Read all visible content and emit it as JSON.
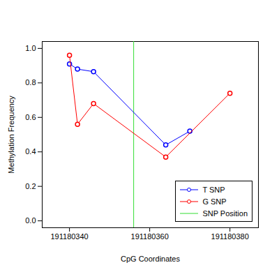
{
  "chart_data": {
    "type": "line",
    "x_label": "CpG Coordinates",
    "y_label": "Methylation Frequency",
    "xlim": [
      191180333.2,
      191180387.1
    ],
    "xticks": [
      191180340,
      191180360,
      191180380
    ],
    "ylim": [
      -0.04,
      1.04
    ],
    "yticks": [
      {
        "value": 0,
        "label": "0.0"
      },
      0.2,
      0.4,
      0.6,
      0.8,
      {
        "value": 1,
        "label": "1.0"
      }
    ],
    "grid": false,
    "legend": "bottom right",
    "marker": "open circle",
    "series": [
      {
        "name": "T SNP",
        "color": "#0000ff",
        "x": [
          191180340,
          191180342,
          191180346,
          191180364,
          191180370
        ],
        "values": [
          0.91,
          0.88,
          0.865,
          0.44,
          0.52
        ]
      },
      {
        "name": "G SNP",
        "color": "#ff0000",
        "x": [
          191180340,
          191180342,
          191180346,
          191180364,
          191180380
        ],
        "values": [
          0.96,
          0.56,
          0.68,
          0.37,
          0.74
        ]
      }
    ],
    "snp": {
      "name": "SNP Position",
      "color": "#33dd33",
      "x": 191180356
    }
  }
}
